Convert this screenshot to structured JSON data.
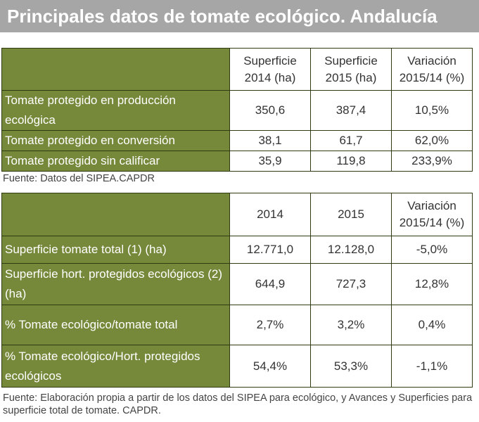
{
  "header": {
    "title": "Principales datos de tomate ecológico. Andalucía"
  },
  "table1": {
    "columns": [
      "Superficie 2014 (ha)",
      "Superficie 2015 (ha)",
      "Variación 2015/14 (%)"
    ],
    "rows": [
      [
        "Tomate protegido en producción ecológica",
        "350,6",
        "387,4",
        "10,5%"
      ],
      [
        "Tomate protegido en conversión",
        "38,1",
        "61,7",
        "62,0%"
      ],
      [
        "Tomate protegido sin calificar",
        "35,9",
        "119,8",
        "233,9%"
      ]
    ]
  },
  "source1": "Fuente: Datos del SIPEA.CAPDR",
  "table2": {
    "columns": [
      "2014",
      "2015",
      "Variación 2015/14 (%)"
    ],
    "rows": [
      [
        "Superficie tomate total (1) (ha)",
        "12.771,0",
        "12.128,0",
        "-5,0%"
      ],
      [
        "Superficie hort. protegidos ecológicos (2) (ha)",
        "644,9",
        "727,3",
        "12,8%"
      ],
      [
        "% Tomate ecológico/tomate total",
        "2,7%",
        "3,2%",
        "0,4%"
      ],
      [
        "% Tomate ecológico/Hort. protegidos ecológicos",
        "54,4%",
        "53,3%",
        "-1,1%"
      ]
    ]
  },
  "source2": "Fuente: Elaboración propia a partir de los datos del SIPEA para ecológico, y Avances y Superficies para superficie total de tomate. CAPDR."
}
